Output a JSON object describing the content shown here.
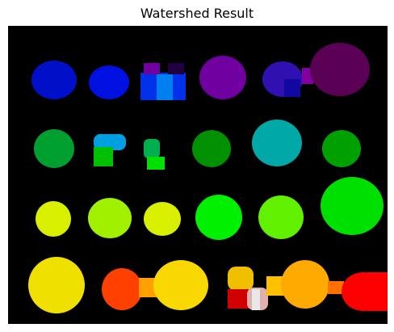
{
  "figure": {
    "title": "Watershed Result",
    "background": "#000000"
  },
  "segments": {
    "row1": [
      "#0010c8",
      "#0010e0",
      "#0050e0",
      "#7000a0",
      "#3010b0",
      "#5a0055"
    ],
    "row2": [
      "#00a030",
      "#00a0e0",
      "#00b050",
      "#009000",
      "#00a8a8",
      "#00a000"
    ],
    "row3": [
      "#d8f000",
      "#a0f000",
      "#d8f000",
      "#00f000",
      "#60f000",
      "#00e000"
    ],
    "row4": [
      "#f0e000",
      "#ff4000",
      "#f8d800",
      "#f0c000",
      "#ffaa00",
      "#ff0000"
    ]
  }
}
